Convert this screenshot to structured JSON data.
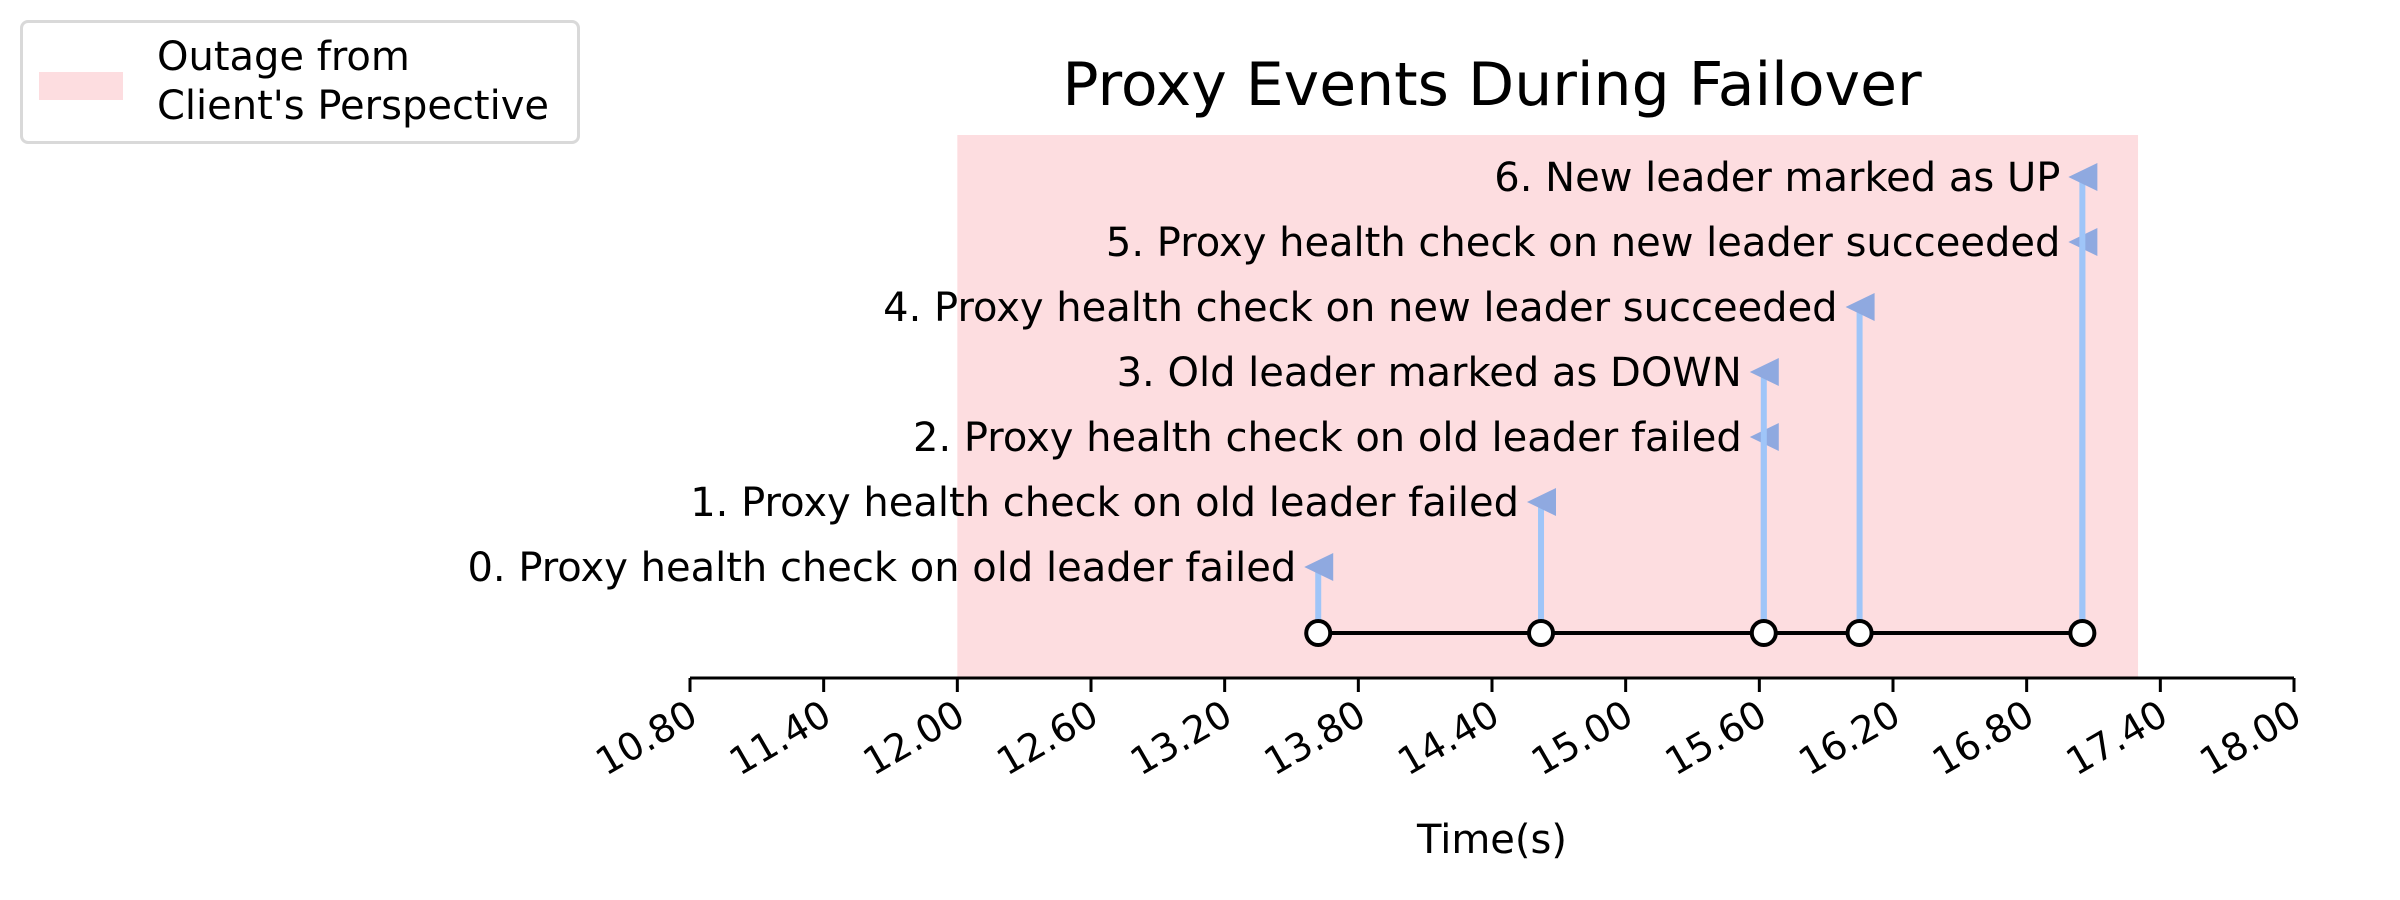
{
  "chart_data": {
    "type": "event-timeline",
    "title": "Proxy Events During Failover",
    "xlabel": "Time(s)",
    "ylabel": "",
    "xlim": [
      10.8,
      18.0
    ],
    "xticks": [
      "10.80",
      "11.40",
      "12.00",
      "12.60",
      "13.20",
      "13.80",
      "14.40",
      "15.00",
      "15.60",
      "16.20",
      "16.80",
      "17.40",
      "18.00"
    ],
    "tick_values": [
      10.8,
      11.4,
      12.0,
      12.6,
      13.2,
      13.8,
      14.4,
      15.0,
      15.6,
      16.2,
      16.8,
      17.4,
      18.0
    ],
    "outage_region": {
      "start": 12.0,
      "end": 17.3,
      "label": "Outage from\nClient's Perspective",
      "color": "#fddde0"
    },
    "events": [
      {
        "index": 0,
        "time": 13.62,
        "label": "0. Proxy health check on old leader failed"
      },
      {
        "index": 1,
        "time": 14.62,
        "label": "1. Proxy health check on old leader failed"
      },
      {
        "index": 2,
        "time": 15.62,
        "label": "2. Proxy health check on old leader failed"
      },
      {
        "index": 3,
        "time": 15.62,
        "label": "3. Old leader marked as DOWN"
      },
      {
        "index": 4,
        "time": 16.05,
        "label": "4. Proxy health check on new leader succeeded"
      },
      {
        "index": 5,
        "time": 17.05,
        "label": "5. Proxy health check on new leader succeeded"
      },
      {
        "index": 6,
        "time": 17.05,
        "label": "6. New leader marked as UP"
      }
    ],
    "timeline_points": [
      13.62,
      14.62,
      15.62,
      16.05,
      17.05
    ],
    "legend_position": "top-left",
    "grid": false,
    "colors": {
      "stem": "#9fc5f8",
      "arrow": "#8fa9e0",
      "outage": "#fddde0",
      "line": "#000000"
    }
  }
}
